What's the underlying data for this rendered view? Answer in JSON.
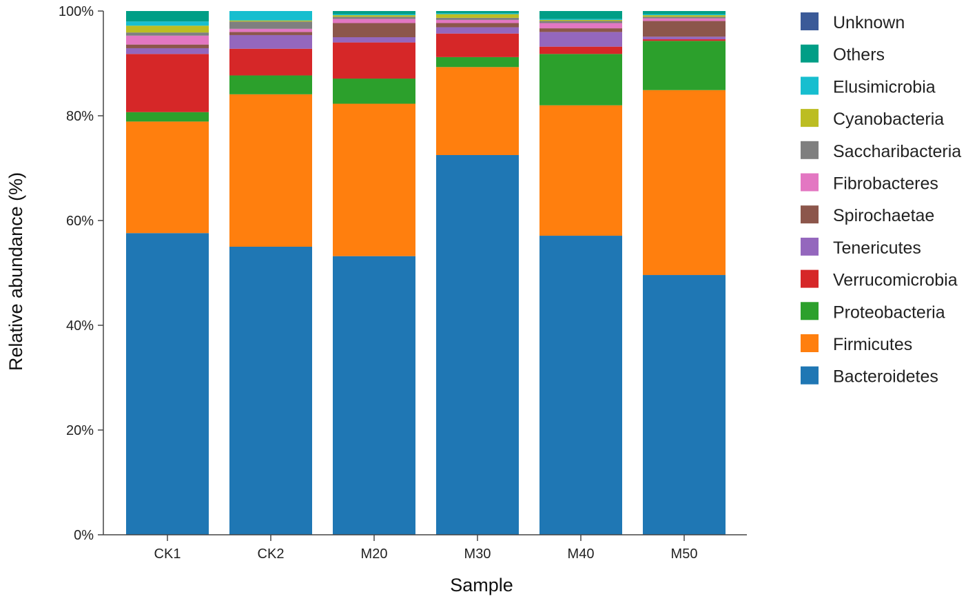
{
  "chart_data": {
    "type": "bar",
    "stacked": true,
    "xlabel": "Sample",
    "ylabel": "Relative abundance (%)",
    "ylim": [
      0,
      100
    ],
    "yticks": [
      "0%",
      "20%",
      "40%",
      "60%",
      "80%",
      "100%"
    ],
    "ytick_values": [
      0,
      20,
      40,
      60,
      80,
      100
    ],
    "grid": false,
    "legend_position": "right",
    "categories": [
      "CK1",
      "CK2",
      "M20",
      "M30",
      "M40",
      "M50"
    ],
    "series": [
      {
        "name": "Bacteroidetes",
        "color": "#1f77b4",
        "values": [
          57.6,
          55.0,
          53.2,
          72.5,
          57.1,
          49.6
        ]
      },
      {
        "name": "Firmicutes",
        "color": "#ff7f0e",
        "values": [
          21.3,
          29.1,
          29.1,
          16.8,
          24.9,
          35.3
        ]
      },
      {
        "name": "Proteobacteria",
        "color": "#2ca02c",
        "values": [
          1.8,
          3.6,
          4.8,
          1.9,
          9.8,
          9.4
        ]
      },
      {
        "name": "Verrucomicrobia",
        "color": "#d62728",
        "values": [
          11.1,
          5.1,
          6.9,
          4.5,
          1.4,
          0.3
        ]
      },
      {
        "name": "Tenericutes",
        "color": "#9467bd",
        "values": [
          1.1,
          2.6,
          1.0,
          1.2,
          2.8,
          0.5
        ]
      },
      {
        "name": "Spirochaetae",
        "color": "#8c564b",
        "values": [
          0.7,
          0.6,
          2.7,
          0.8,
          0.7,
          3.0
        ]
      },
      {
        "name": "Fibrobacteres",
        "color": "#e377c2",
        "values": [
          1.7,
          0.6,
          0.8,
          0.6,
          1.0,
          0.5
        ]
      },
      {
        "name": "Saccharibacteria",
        "color": "#7f7f7f",
        "values": [
          0.6,
          1.4,
          0.4,
          0.4,
          0.4,
          0.3
        ]
      },
      {
        "name": "Cyanobacteria",
        "color": "#bcbd22",
        "values": [
          1.3,
          0.2,
          0.3,
          0.7,
          0.2,
          0.3
        ]
      },
      {
        "name": "Elusimicrobia",
        "color": "#17becf",
        "values": [
          0.8,
          1.8,
          0.2,
          0.2,
          0.2,
          0.2
        ]
      },
      {
        "name": "Others",
        "color": "#009e86",
        "values": [
          2.0,
          0.0,
          0.6,
          0.4,
          1.5,
          0.6
        ]
      },
      {
        "name": "Unknown",
        "color": "#3b5a98",
        "values": [
          0.0,
          0.0,
          0.0,
          0.0,
          0.0,
          0.0
        ]
      }
    ],
    "legend_order": [
      "Unknown",
      "Others",
      "Elusimicrobia",
      "Cyanobacteria",
      "Saccharibacteria",
      "Fibrobacteres",
      "Spirochaetae",
      "Tenericutes",
      "Verrucomicrobia",
      "Proteobacteria",
      "Firmicutes",
      "Bacteroidetes"
    ]
  }
}
